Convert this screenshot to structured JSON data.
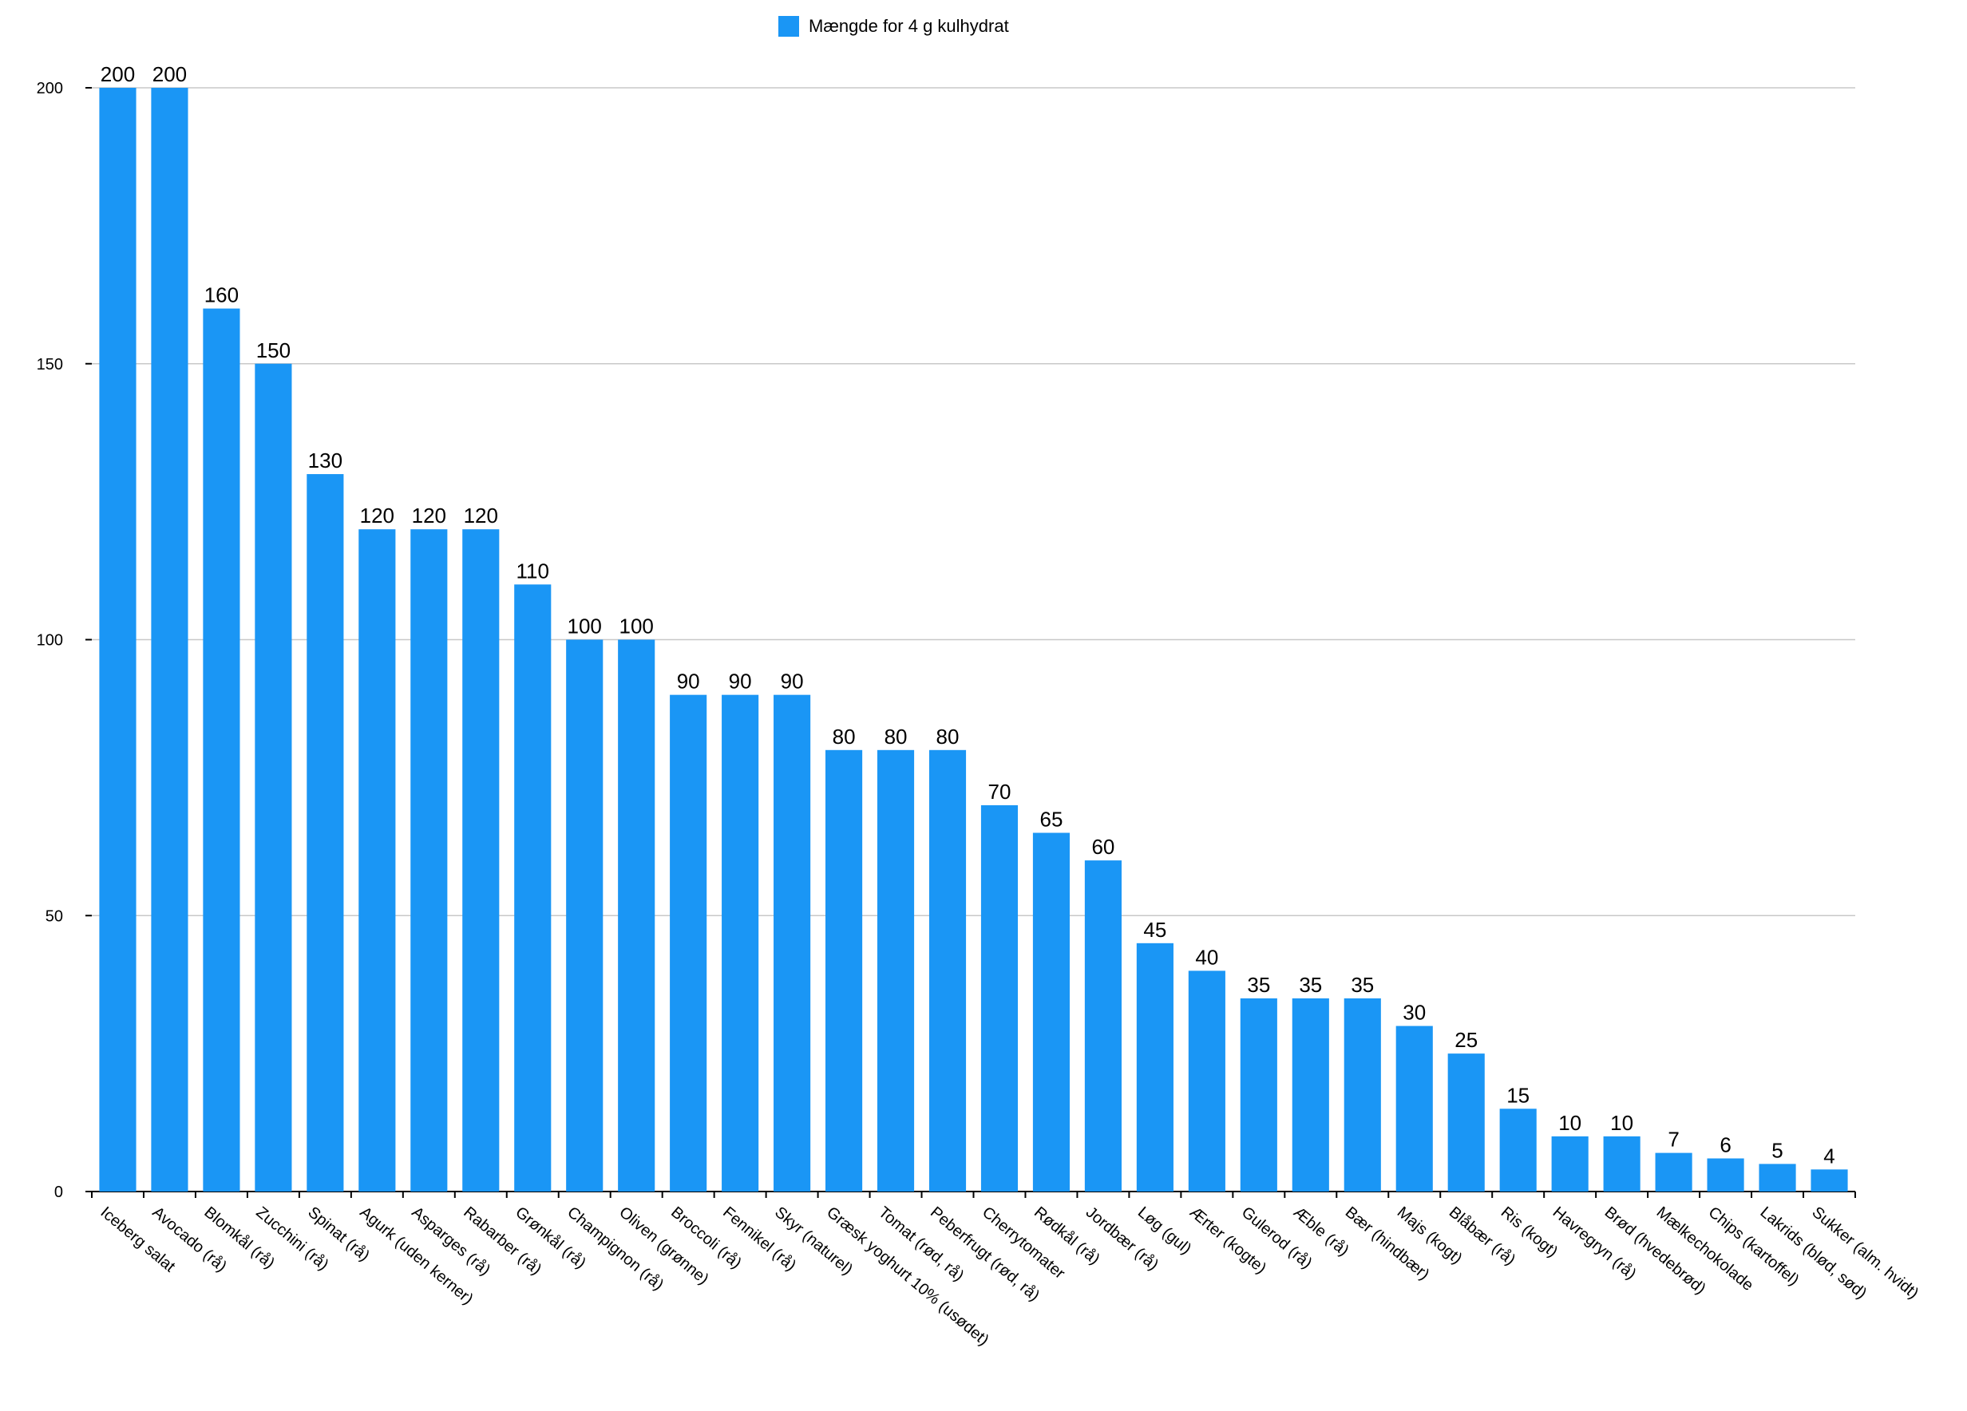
{
  "chart_data": {
    "type": "bar",
    "categories": [
      "Iceberg salat",
      "Avocado (rå)",
      "Blomkål (rå)",
      "Zucchini (rå)",
      "Spinat (rå)",
      "Agurk (uden kerner)",
      "Asparges (rå)",
      "Rabarber (rå)",
      "Grønkål (rå)",
      "Champignon (rå)",
      "Oliven (grønne)",
      "Broccoli (rå)",
      "Fennikel (rå)",
      "Skyr (naturel)",
      "Græsk yoghurt 10% (usødet)",
      "Tomat (rød, rå)",
      "Peberfrugt (rød, rå)",
      "Cherrytomater",
      "Rødkål (rå)",
      "Jordbær (rå)",
      "Løg (gul)",
      "Ærter (kogte)",
      "Gulerod (rå)",
      "Æble (rå)",
      "Bær (hindbær)",
      "Majs (kogt)",
      "Blåbær (rå)",
      "Ris (kogt)",
      "Havregryn (rå)",
      "Brød (hvedebrød)",
      "Mælkechokolade",
      "Chips (kartoffel)",
      "Lakrids (blød, sød)",
      "Sukker (alm. hvidt)"
    ],
    "series": [
      {
        "name": "Mængde for 4 g kulhydrat",
        "values": [
          200,
          200,
          160,
          150,
          130,
          120,
          120,
          120,
          110,
          100,
          100,
          90,
          90,
          90,
          80,
          80,
          80,
          70,
          65,
          60,
          45,
          40,
          35,
          35,
          35,
          30,
          25,
          15,
          10,
          10,
          7,
          6,
          5,
          4
        ],
        "color": "#1a96f5"
      }
    ],
    "yticks": [
      "0",
      "50",
      "100",
      "150",
      "200"
    ],
    "ylim": [
      0,
      200
    ],
    "grid": true,
    "legend_position": "top-center",
    "data_labels": true
  }
}
